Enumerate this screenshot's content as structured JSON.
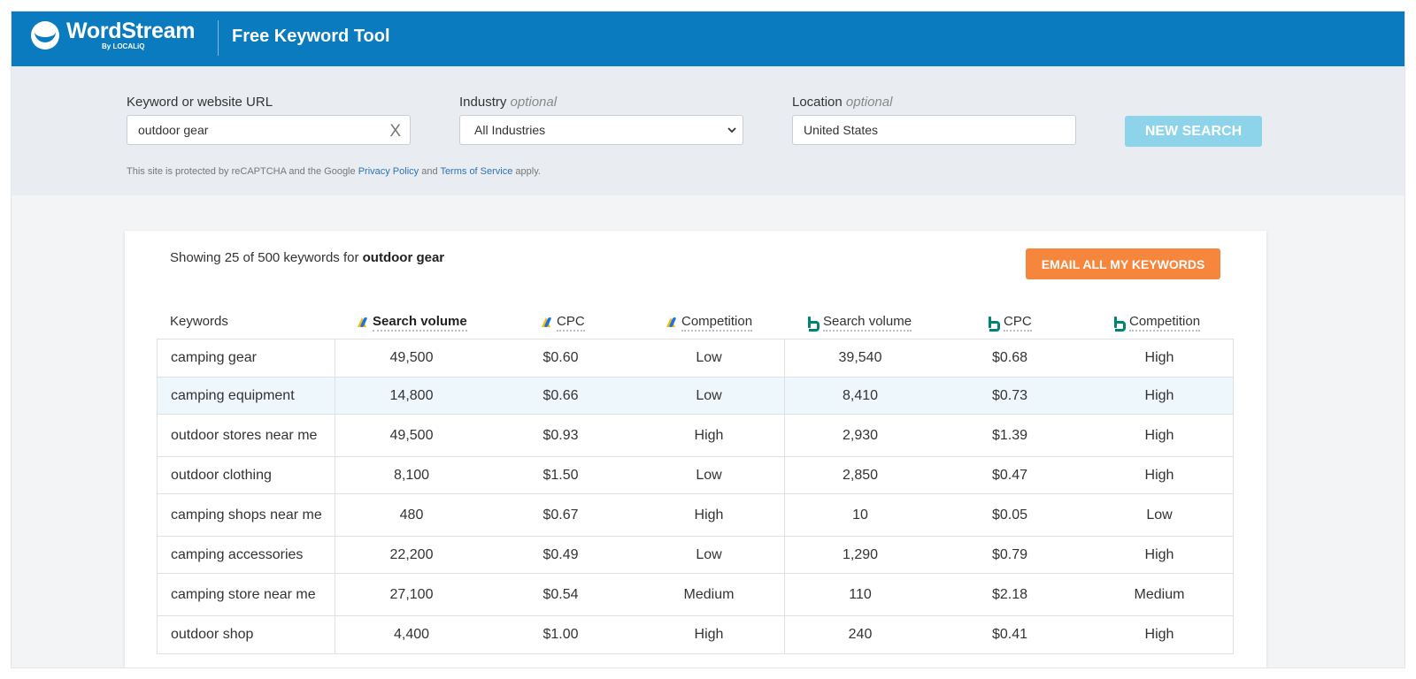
{
  "header": {
    "brand": "WordStream",
    "brand_sub": "By LOCALiQ",
    "tool_title": "Free Keyword Tool"
  },
  "search": {
    "keyword_label": "Keyword or website URL",
    "keyword_value": "outdoor gear",
    "clear_glyph": "X",
    "industry_label": "Industry",
    "industry_optional": "optional",
    "industry_value": "All Industries",
    "location_label": "Location",
    "location_optional": "optional",
    "location_value": "United States",
    "recaptcha_prefix": "This site is protected by reCAPTCHA and the Google",
    "privacy_link": "Privacy Policy",
    "and_text": "and",
    "terms_link": "Terms of Service",
    "recaptcha_suffix": "apply.",
    "new_search_label": "NEW SEARCH"
  },
  "results": {
    "showing_prefix": "Showing 25 of 500 keywords for",
    "query": "outdoor gear",
    "email_label": "EMAIL ALL MY KEYWORDS",
    "columns": {
      "keywords": "Keywords",
      "g_volume": "Search volume",
      "g_cpc": "CPC",
      "g_competition": "Competition",
      "b_volume": "Search volume",
      "b_cpc": "CPC",
      "b_competition": "Competition"
    },
    "rows": [
      {
        "kw": "camping gear",
        "gv": "49,500",
        "gc": "$0.60",
        "gcomp": "Low",
        "bv": "39,540",
        "bc": "$0.68",
        "bcomp": "High"
      },
      {
        "kw": "camping equipment",
        "gv": "14,800",
        "gc": "$0.66",
        "gcomp": "Low",
        "bv": "8,410",
        "bc": "$0.73",
        "bcomp": "High"
      },
      {
        "kw": "outdoor stores near me",
        "gv": "49,500",
        "gc": "$0.93",
        "gcomp": "High",
        "bv": "2,930",
        "bc": "$1.39",
        "bcomp": "High"
      },
      {
        "kw": "outdoor clothing",
        "gv": "8,100",
        "gc": "$1.50",
        "gcomp": "Low",
        "bv": "2,850",
        "bc": "$0.47",
        "bcomp": "High"
      },
      {
        "kw": "camping shops near me",
        "gv": "480",
        "gc": "$0.67",
        "gcomp": "High",
        "bv": "10",
        "bc": "$0.05",
        "bcomp": "Low"
      },
      {
        "kw": "camping accessories",
        "gv": "22,200",
        "gc": "$0.49",
        "gcomp": "Low",
        "bv": "1,290",
        "bc": "$0.79",
        "bcomp": "High"
      },
      {
        "kw": "camping store near me",
        "gv": "27,100",
        "gc": "$0.54",
        "gcomp": "Medium",
        "bv": "110",
        "bc": "$2.18",
        "bcomp": "Medium"
      },
      {
        "kw": "outdoor shop",
        "gv": "4,400",
        "gc": "$1.00",
        "gcomp": "High",
        "bv": "240",
        "bc": "$0.41",
        "bcomp": "High"
      }
    ]
  },
  "colors": {
    "header_blue": "#0a7bbf",
    "new_search_button": "#8dd3ea",
    "email_button": "#f7863d",
    "highlight_row": "#eef7fc",
    "google_ads_icon": "#fbbc04",
    "bing_icon": "#008373"
  },
  "icons": {
    "google": "google-ads-icon",
    "bing": "bing-icon",
    "clear": "clear-icon",
    "dropdown": "chevron-down-icon",
    "logo": "wordstream-logo-icon"
  }
}
